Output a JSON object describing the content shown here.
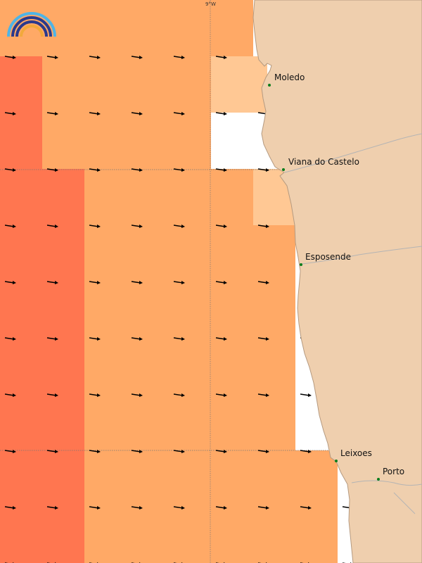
{
  "map": {
    "grid_label": "9°W",
    "colors": {
      "land": "#efcfae",
      "coast": "#b59a80",
      "river": "#b4b4b4",
      "sea_high": "#ff7650",
      "sea_mid": "#ffa966",
      "sea_low": "#ffc894",
      "arrow": "#000000",
      "city_dot": "#0a7d1c",
      "grid": "#777777"
    },
    "cities": [
      {
        "name": "Moledo"
      },
      {
        "name": "Viana do Castelo"
      },
      {
        "name": "Esposende"
      },
      {
        "name": "Leixoes"
      },
      {
        "name": "Porto"
      }
    ]
  }
}
